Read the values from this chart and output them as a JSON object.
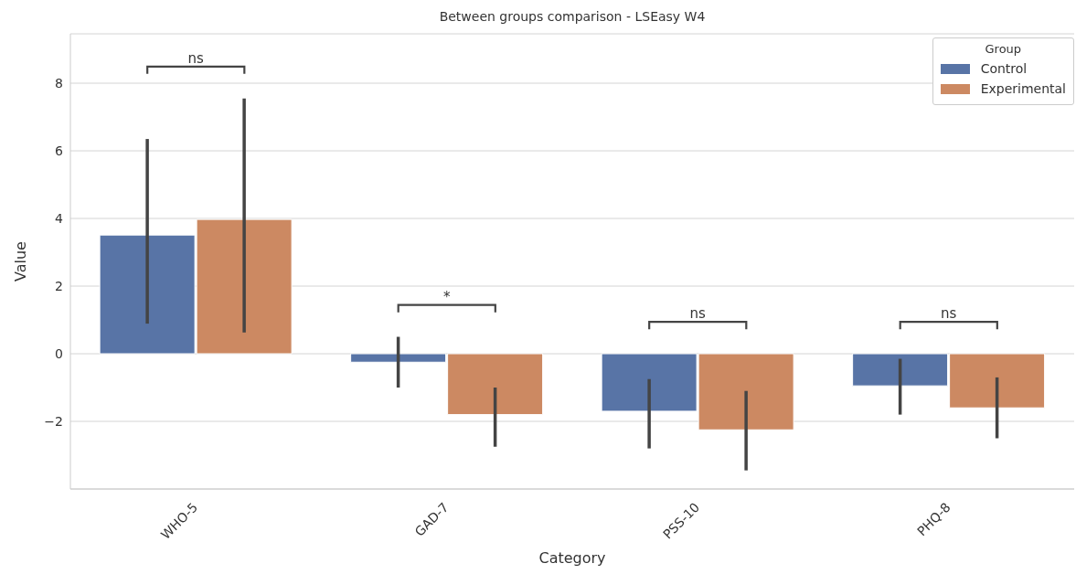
{
  "chart_data": {
    "type": "bar",
    "title": "Between groups comparison - LSEasy W4",
    "xlabel": "Category",
    "ylabel": "Value",
    "legend_title": "Group",
    "categories": [
      "WHO-5",
      "GAD-7",
      "PSS-10",
      "PHQ-8"
    ],
    "series": [
      {
        "name": "Control",
        "color": "#5874a6",
        "values": [
          3.51,
          -0.25,
          -1.7,
          -0.95
        ],
        "errors": [
          [
            0.89,
            6.35
          ],
          [
            -1.0,
            0.5
          ],
          [
            -2.8,
            -0.75
          ],
          [
            -1.8,
            -0.15
          ]
        ]
      },
      {
        "name": "Experimental",
        "color": "#cc8962",
        "values": [
          3.97,
          -1.8,
          -2.25,
          -1.6
        ],
        "errors": [
          [
            0.63,
            7.55
          ],
          [
            -2.75,
            -1.0
          ],
          [
            -3.45,
            -1.1
          ],
          [
            -2.5,
            -0.7
          ]
        ]
      }
    ],
    "ylim": [
      -4.0,
      9.46
    ],
    "yticks": [
      {
        "value": -2,
        "label": "−2"
      },
      0,
      2,
      4,
      6,
      8
    ],
    "grid": "y",
    "legend": "top right",
    "annotations": [
      "ns",
      "*",
      "ns",
      "ns"
    ]
  }
}
